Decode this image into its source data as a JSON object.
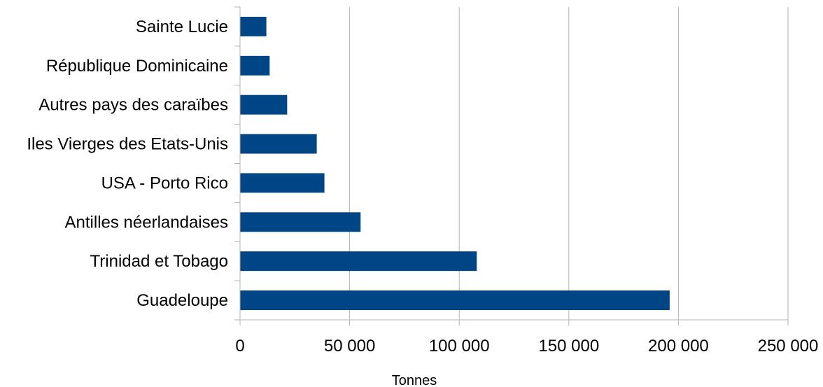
{
  "chart_data": {
    "type": "bar",
    "orientation": "horizontal",
    "categories": [
      "Sainte Lucie",
      "République Dominicaine",
      "Autres pays des caraïbes",
      "Iles Vierges des Etats-Unis",
      "USA - Porto Rico",
      "Antilles néerlandaises",
      "Trinidad et Tobago",
      "Guadeloupe"
    ],
    "values": [
      12000,
      13500,
      21500,
      35000,
      38500,
      55000,
      108000,
      196000
    ],
    "xlabel": "Tonnes",
    "ylabel": "",
    "xlim": [
      0,
      250000
    ],
    "ticks": [
      0,
      50000,
      100000,
      150000,
      200000,
      250000
    ],
    "tick_labels": [
      "0",
      "50 000",
      "100 000",
      "150 000",
      "200 000",
      "250 000"
    ],
    "grid": true,
    "bar_color": "#004586",
    "grid_color": "#b3b3b3"
  }
}
